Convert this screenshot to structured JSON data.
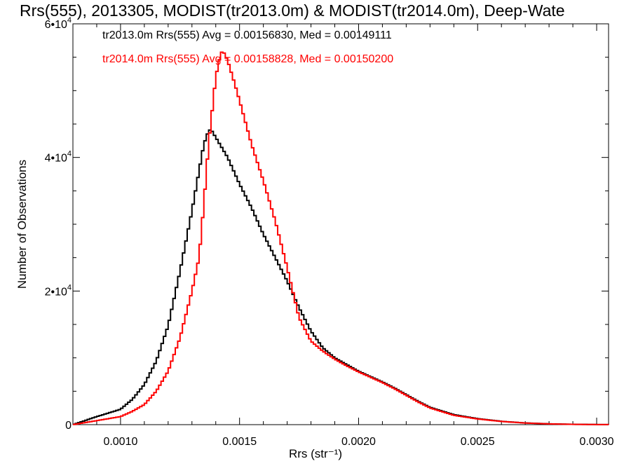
{
  "chart_data": {
    "type": "line",
    "title": "Rrs(555), 2013305, MODIST(tr2013.0m) & MODIST(tr2014.0m), Deep-Wate",
    "xlabel": "Rrs (str⁻¹)",
    "ylabel": "Number of Observations",
    "xlim": [
      0.0008,
      0.00305
    ],
    "ylim": [
      0,
      60000
    ],
    "x_ticks": [
      0.001,
      0.0015,
      0.002,
      0.0025,
      0.003
    ],
    "x_tick_labels": [
      "0.0010",
      "0.0015",
      "0.0020",
      "0.0025",
      "0.0030"
    ],
    "y_ticks": [
      0,
      20000,
      40000,
      60000
    ],
    "y_tick_labels": [
      {
        "base": "0",
        "exp": ""
      },
      {
        "base": "2•10",
        "exp": "4"
      },
      {
        "base": "4•10",
        "exp": "4"
      },
      {
        "base": "6•10",
        "exp": "4"
      }
    ],
    "grid": false,
    "series": [
      {
        "name": "tr2013.0m Rrs(555) Avg = 0.00156830, Med = 0.00149111",
        "color": "#000000",
        "points": [
          [
            0.0008,
            0
          ],
          [
            0.0009,
            1200
          ],
          [
            0.001,
            2300
          ],
          [
            0.00105,
            3800
          ],
          [
            0.0011,
            6000
          ],
          [
            0.00115,
            9500
          ],
          [
            0.0012,
            14800
          ],
          [
            0.00125,
            23000
          ],
          [
            0.0013,
            32000
          ],
          [
            0.00133,
            38000
          ],
          [
            0.00135,
            42000
          ],
          [
            0.00137,
            44000
          ],
          [
            0.00138,
            44200
          ],
          [
            0.0014,
            43000
          ],
          [
            0.00145,
            40000
          ],
          [
            0.0015,
            36000
          ],
          [
            0.00155,
            32500
          ],
          [
            0.0016,
            28500
          ],
          [
            0.00165,
            25000
          ],
          [
            0.0017,
            21500
          ],
          [
            0.00175,
            17500
          ],
          [
            0.0018,
            14000
          ],
          [
            0.00185,
            11500
          ],
          [
            0.0019,
            10000
          ],
          [
            0.00195,
            9000
          ],
          [
            0.002,
            8000
          ],
          [
            0.00205,
            7200
          ],
          [
            0.0021,
            6400
          ],
          [
            0.00215,
            5500
          ],
          [
            0.0022,
            4500
          ],
          [
            0.00225,
            3500
          ],
          [
            0.0023,
            2600
          ],
          [
            0.0024,
            1500
          ],
          [
            0.0025,
            900
          ],
          [
            0.0026,
            500
          ],
          [
            0.0027,
            250
          ],
          [
            0.0028,
            120
          ],
          [
            0.0029,
            50
          ],
          [
            0.003,
            20
          ],
          [
            0.00305,
            10
          ]
        ]
      },
      {
        "name": "tr2014.0m Rrs(555) Avg = 0.00158828, Med = 0.00150200",
        "color": "#ff0000",
        "points": [
          [
            0.0008,
            0
          ],
          [
            0.0009,
            600
          ],
          [
            0.001,
            1200
          ],
          [
            0.00105,
            2000
          ],
          [
            0.0011,
            3000
          ],
          [
            0.00115,
            5000
          ],
          [
            0.0012,
            8000
          ],
          [
            0.00125,
            13000
          ],
          [
            0.0013,
            20000
          ],
          [
            0.00133,
            25000
          ],
          [
            0.00135,
            33000
          ],
          [
            0.00137,
            42000
          ],
          [
            0.0014,
            52000
          ],
          [
            0.00142,
            55500
          ],
          [
            0.00143,
            56000
          ],
          [
            0.00145,
            54500
          ],
          [
            0.00148,
            51000
          ],
          [
            0.0015,
            48500
          ],
          [
            0.00155,
            42000
          ],
          [
            0.0016,
            36500
          ],
          [
            0.00165,
            30500
          ],
          [
            0.0017,
            23500
          ],
          [
            0.00175,
            16000
          ],
          [
            0.0018,
            12500
          ],
          [
            0.00185,
            11000
          ],
          [
            0.0019,
            9800
          ],
          [
            0.00195,
            8800
          ],
          [
            0.002,
            7900
          ],
          [
            0.00205,
            7100
          ],
          [
            0.0021,
            6300
          ],
          [
            0.00215,
            5400
          ],
          [
            0.0022,
            4400
          ],
          [
            0.00225,
            3400
          ],
          [
            0.0023,
            2500
          ],
          [
            0.0024,
            1400
          ],
          [
            0.0025,
            850
          ],
          [
            0.0026,
            480
          ],
          [
            0.0027,
            240
          ],
          [
            0.0028,
            110
          ],
          [
            0.0029,
            45
          ],
          [
            0.003,
            18
          ],
          [
            0.00305,
            8
          ]
        ]
      }
    ]
  }
}
